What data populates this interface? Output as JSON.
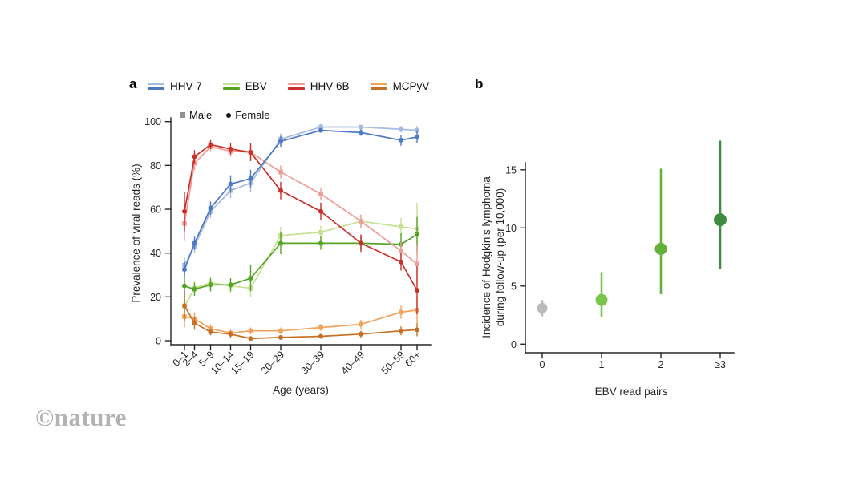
{
  "figure": {
    "panel_a_label": "a",
    "panel_b_label": "b",
    "watermark": "©nature",
    "virus_legend": [
      {
        "label": "HHV-7",
        "light": "#a6bbde",
        "dark": "#4e79c5"
      },
      {
        "label": "EBV",
        "light": "#c6e191",
        "dark": "#55a425"
      },
      {
        "label": "HHV-6B",
        "light": "#f09c96",
        "dark": "#c9302a"
      },
      {
        "label": "MCPyV",
        "light": "#f2a35b",
        "dark": "#c76f24"
      }
    ],
    "marker_legend": [
      {
        "label": "Male",
        "marker": "square",
        "color": "#8f8f8f"
      },
      {
        "label": "Female",
        "marker": "circle",
        "color": "#111111"
      }
    ]
  },
  "chart_data": [
    {
      "type": "line",
      "panel": "a",
      "title": "",
      "xlabel": "Age (years)",
      "ylabel": "Prevalence of viral reads (%)",
      "ylim": [
        0,
        100
      ],
      "yticks": [
        0,
        20,
        40,
        60,
        80,
        100
      ],
      "grid": false,
      "categories": [
        "0–1",
        "2–4",
        "5–9",
        "10–14",
        "15–19",
        "20–29",
        "30–39",
        "40–49",
        "50–59",
        "60+"
      ],
      "x_age_midpoints": [
        0.5,
        3,
        7,
        12,
        17,
        24.5,
        34.5,
        44.5,
        54.5,
        58.5
      ],
      "series": [
        {
          "virus": "EBV",
          "sex": "Male",
          "marker": "square",
          "color": "#c6e191",
          "values": [
            15.5,
            24,
            26.5,
            25,
            24,
            48,
            49.5,
            54.5,
            52,
            51
          ],
          "err": [
            6,
            3,
            3,
            3,
            4,
            4,
            3,
            3,
            4,
            12
          ]
        },
        {
          "virus": "EBV",
          "sex": "Female",
          "marker": "circle",
          "color": "#55a425",
          "values": [
            25,
            23.5,
            25.5,
            25.5,
            28.5,
            44.5,
            44.5,
            44.5,
            44,
            48.5
          ],
          "err": [
            8,
            3,
            3,
            3,
            6,
            5,
            3,
            3,
            5,
            8
          ]
        },
        {
          "virus": "MCPyV",
          "sex": "Male",
          "marker": "square",
          "color": "#f2a35b",
          "values": [
            11,
            10,
            5.5,
            3.5,
            4.5,
            4.5,
            6,
            7.5,
            13,
            14
          ],
          "err": [
            5,
            3,
            2,
            1.5,
            1.5,
            1.5,
            1.5,
            2,
            3,
            6
          ]
        },
        {
          "virus": "MCPyV",
          "sex": "Female",
          "marker": "circle",
          "color": "#c76f24",
          "values": [
            16,
            8,
            4,
            3,
            1,
            1.5,
            2,
            3,
            4.5,
            5
          ],
          "err": [
            7,
            3,
            1.5,
            1.5,
            1,
            1,
            1,
            1.5,
            2,
            3
          ]
        },
        {
          "virus": "HHV-6B",
          "sex": "Male",
          "marker": "square",
          "color": "#f09c96",
          "values": [
            53.5,
            81,
            88.5,
            86.5,
            86,
            77,
            67,
            54.5,
            41,
            35
          ],
          "err": [
            8,
            3,
            2,
            2.5,
            3,
            3,
            3,
            3,
            4,
            9
          ]
        },
        {
          "virus": "HHV-6B",
          "sex": "Female",
          "marker": "circle",
          "color": "#c9302a",
          "values": [
            59,
            84,
            89.5,
            87.5,
            86,
            68.5,
            59,
            44.5,
            36,
            23
          ],
          "err": [
            9,
            3,
            2,
            2.5,
            4,
            4,
            4,
            4,
            4,
            11
          ]
        },
        {
          "virus": "HHV-7",
          "sex": "Male",
          "marker": "square",
          "color": "#a6bbde",
          "values": [
            34.5,
            43,
            59,
            68.5,
            72,
            92,
            97.5,
            97.5,
            96.5,
            96
          ],
          "err": [
            4,
            3,
            3,
            3.5,
            4,
            2.5,
            1.5,
            1,
            1.5,
            2
          ]
        },
        {
          "virus": "HHV-7",
          "sex": "Female",
          "marker": "circle",
          "color": "#4e79c5",
          "values": [
            32.5,
            44.5,
            60.5,
            71.5,
            74,
            91,
            96,
            95,
            91.5,
            93
          ],
          "err": [
            3.5,
            3,
            3,
            4,
            4,
            2.5,
            1,
            1.5,
            2.5,
            3
          ]
        }
      ]
    },
    {
      "type": "scatter",
      "panel": "b",
      "title": "",
      "xlabel": "EBV read pairs",
      "ylabel": "Incidence of Hodgkin's lymphoma during follow-up (per 10,000)",
      "ylabel_lines": [
        "Incidence of Hodgkin's lymphoma",
        "during follow-up (per 10,000)"
      ],
      "ylim": [
        0,
        15
      ],
      "yticks": [
        0,
        5,
        10,
        15
      ],
      "grid": false,
      "categories": [
        "0",
        "1",
        "2",
        "≥3"
      ],
      "points": [
        {
          "label": "0",
          "value": 3.1,
          "ci_low": 2.4,
          "ci_high": 3.8,
          "color": "#bababa",
          "radius": 6.5
        },
        {
          "label": "1",
          "value": 3.8,
          "ci_low": 2.3,
          "ci_high": 6.2,
          "color": "#7cc34c",
          "radius": 7.5
        },
        {
          "label": "2",
          "value": 8.2,
          "ci_low": 4.3,
          "ci_high": 15.1,
          "color": "#63b13b",
          "radius": 7.5
        },
        {
          "label": "≥3",
          "value": 10.7,
          "ci_low": 6.5,
          "ci_high": 17.5,
          "color": "#3d8b3f",
          "radius": 8
        }
      ]
    }
  ]
}
